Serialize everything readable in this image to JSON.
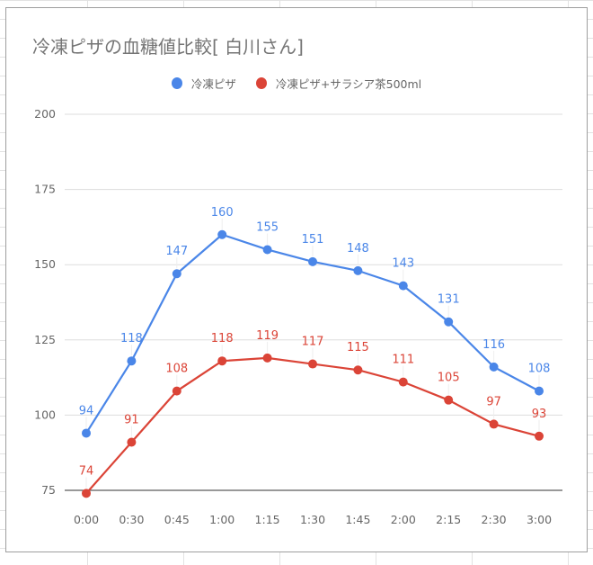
{
  "chart_data": {
    "type": "line",
    "title": "冷凍ピザの血糖値比較[ 白川さん]",
    "categories": [
      "0:00",
      "0:30",
      "0:45",
      "1:00",
      "1:15",
      "1:30",
      "1:45",
      "2:00",
      "2:15",
      "2:30",
      "3:00"
    ],
    "ylim": [
      75,
      200
    ],
    "yticks": [
      75,
      100,
      125,
      150,
      175,
      200
    ],
    "legend_position": "top",
    "grid": true,
    "series": [
      {
        "name": "冷凍ピザ",
        "color": "#4a86e8",
        "values": [
          94,
          118,
          147,
          160,
          155,
          151,
          148,
          143,
          131,
          116,
          108
        ]
      },
      {
        "name": "冷凍ピザ+サラシア茶500ml",
        "color": "#db4437",
        "values": [
          74,
          91,
          108,
          118,
          119,
          117,
          115,
          111,
          105,
          97,
          93
        ]
      }
    ]
  }
}
